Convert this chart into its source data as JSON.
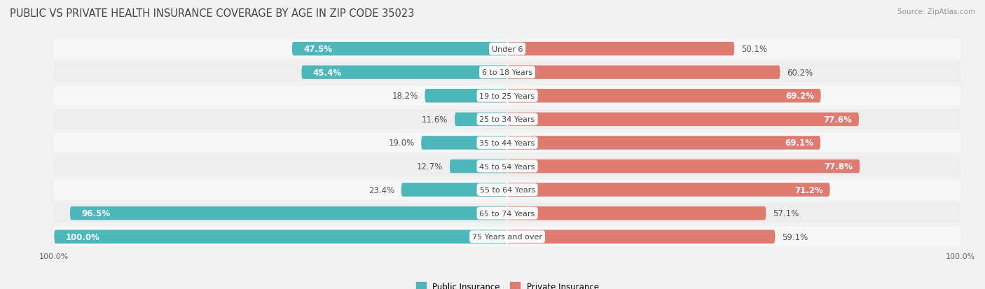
{
  "title": "PUBLIC VS PRIVATE HEALTH INSURANCE COVERAGE BY AGE IN ZIP CODE 35023",
  "source": "Source: ZipAtlas.com",
  "categories": [
    "Under 6",
    "6 to 18 Years",
    "19 to 25 Years",
    "25 to 34 Years",
    "35 to 44 Years",
    "45 to 54 Years",
    "55 to 64 Years",
    "65 to 74 Years",
    "75 Years and over"
  ],
  "public_values": [
    47.5,
    45.4,
    18.2,
    11.6,
    19.0,
    12.7,
    23.4,
    96.5,
    100.0
  ],
  "private_values": [
    50.1,
    60.2,
    69.2,
    77.6,
    69.1,
    77.8,
    71.2,
    57.1,
    59.1
  ],
  "public_color": "#4db8bb",
  "private_color": "#e07b72",
  "row_bg_light": "#f7f7f7",
  "row_bg_dark": "#eeeeee",
  "bar_height": 0.58,
  "title_fontsize": 10.5,
  "label_fontsize": 8.5,
  "source_fontsize": 7.5,
  "tick_fontsize": 8,
  "figsize": [
    14.06,
    4.14
  ],
  "dpi": 100,
  "xlim": 100,
  "pub_label_inside_threshold": 25,
  "priv_label_inside_threshold": 65
}
